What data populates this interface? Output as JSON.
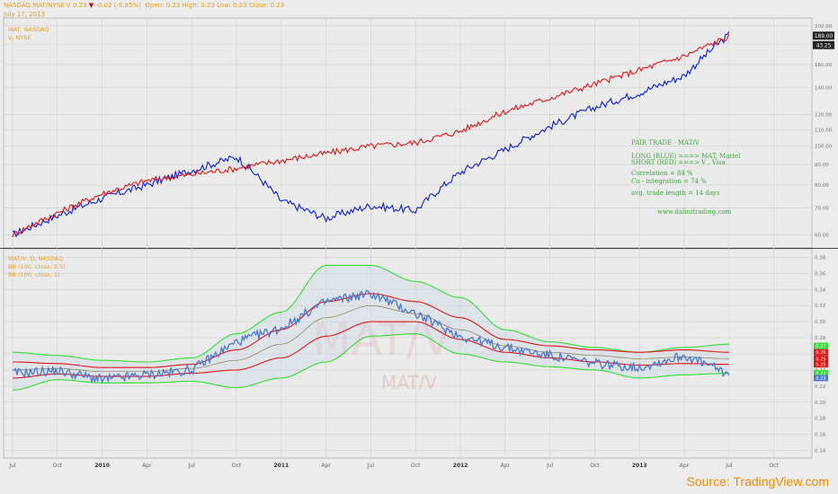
{
  "header": {
    "symbol": "NASDAQ:MAT/NYSE:V",
    "last": "0.23",
    "change_arrow": "▼",
    "change": "-0.02 (-6.85%)",
    "open_label": "Open:",
    "open": "0.23",
    "high_label": "High:",
    "high": "0.23",
    "low_label": "Low:",
    "low": "0.23",
    "close_label": "Close:",
    "close": "0.23",
    "date": "July 17, 2013"
  },
  "source": {
    "prefix": "Source: ",
    "name": "TradingView.com"
  },
  "colors": {
    "blue": "#0a1fd8",
    "red": "#e01515",
    "ratio": "#4a78d0",
    "band_outer": "#33dd33",
    "band_inner": "#e01515",
    "mid": "#8a7a55",
    "text_orange": "#e8a020",
    "annot_green": "#3aaa3a"
  },
  "chart_data": [
    {
      "type": "line",
      "panel": "top",
      "legend": [
        "MAT, NASDAQ",
        "V, NYSE"
      ],
      "annotation": [
        "PAIR TRADE - MAT/V",
        "LONG (BLUE) ===> MAT, Mattel",
        "SHORT (RED) ===> V , Visa",
        "Correlation = 84 %",
        "Co - integration = 74 %",
        "avg. trade length = 14 days",
        "www.dalinitrading.com"
      ],
      "y_ticks": [
        "200.00",
        "180.00",
        "160.00",
        "140.00",
        "120.00",
        "110.00",
        "100.00",
        "90.00",
        "80.00",
        "70.00",
        "60.00"
      ],
      "y_tick_values": [
        200,
        180,
        160,
        140,
        120,
        110,
        100,
        90,
        80,
        70,
        60
      ],
      "ylim": [
        58,
        205
      ],
      "price_badges": [
        {
          "label": "189.00",
          "value": 189
        },
        {
          "label": "43.25",
          "value": 179
        }
      ],
      "x": [
        0,
        3,
        6,
        9,
        12,
        15,
        18,
        21,
        24,
        27,
        30,
        33,
        36,
        39,
        42,
        45,
        48
      ],
      "series": [
        {
          "color": "blue",
          "values": [
            60,
            67,
            74,
            80,
            87,
            94,
            73,
            66,
            71,
            69,
            86,
            98,
            112,
            125,
            136,
            150,
            190
          ]
        },
        {
          "color": "red",
          "values": [
            60,
            68,
            76,
            82,
            85,
            88,
            92,
            96,
            100,
            102,
            109,
            122,
            132,
            143,
            155,
            168,
            188
          ]
        }
      ]
    },
    {
      "type": "line",
      "panel": "bottom",
      "legend": [
        "MAT/V, D, NASDAQ",
        "BB (100, close, 2.5)",
        "BB (100, close, 1)"
      ],
      "watermark": [
        "MAT/V",
        "MAT/V"
      ],
      "y_ticks": [
        "0.38",
        "0.36",
        "0.34",
        "0.32",
        "0.30",
        "0.28",
        "0.26",
        "0.24",
        "0.22",
        "0.20",
        "0.18",
        "0.16",
        "0.14"
      ],
      "y_tick_values": [
        0.38,
        0.36,
        0.34,
        0.32,
        0.3,
        0.28,
        0.26,
        0.24,
        0.22,
        0.2,
        0.18,
        0.16,
        0.14
      ],
      "ylim": [
        0.135,
        0.385
      ],
      "value_badges": [
        {
          "label": "0.27",
          "value": 0.27,
          "color": "band_outer"
        },
        {
          "label": "0.26",
          "value": 0.262,
          "color": "band_inner"
        },
        {
          "label": "0.25",
          "value": 0.254,
          "color": "band_inner"
        },
        {
          "label": "0.25",
          "value": 0.247,
          "color": "band_inner"
        },
        {
          "label": "0.23",
          "value": 0.236,
          "color": "band_outer"
        },
        {
          "label": "0.23",
          "value": 0.23,
          "color": "ratio"
        }
      ],
      "x": [
        0,
        3,
        6,
        9,
        12,
        15,
        18,
        21,
        24,
        27,
        30,
        33,
        36,
        39,
        42,
        45,
        48
      ],
      "ratio": [
        0.236,
        0.239,
        0.228,
        0.234,
        0.24,
        0.275,
        0.292,
        0.325,
        0.335,
        0.31,
        0.282,
        0.268,
        0.258,
        0.248,
        0.243,
        0.258,
        0.235
      ],
      "bands": {
        "upper_outer": [
          0.262,
          0.258,
          0.252,
          0.25,
          0.255,
          0.285,
          0.312,
          0.37,
          0.37,
          0.35,
          0.33,
          0.29,
          0.275,
          0.268,
          0.262,
          0.268,
          0.272
        ],
        "upper_inner": [
          0.25,
          0.248,
          0.243,
          0.243,
          0.247,
          0.265,
          0.29,
          0.325,
          0.335,
          0.325,
          0.305,
          0.278,
          0.27,
          0.265,
          0.262,
          0.265,
          0.262
        ],
        "mid": [
          0.24,
          0.242,
          0.238,
          0.238,
          0.242,
          0.252,
          0.272,
          0.305,
          0.32,
          0.31,
          0.29,
          0.27,
          0.262,
          0.258,
          0.254,
          0.256,
          0.254
        ],
        "lower_inner": [
          0.23,
          0.235,
          0.232,
          0.232,
          0.236,
          0.24,
          0.255,
          0.282,
          0.3,
          0.3,
          0.278,
          0.262,
          0.255,
          0.25,
          0.246,
          0.248,
          0.247
        ],
        "lower_outer": [
          0.215,
          0.228,
          0.224,
          0.224,
          0.226,
          0.218,
          0.23,
          0.25,
          0.282,
          0.285,
          0.26,
          0.25,
          0.244,
          0.24,
          0.23,
          0.234,
          0.236
        ]
      }
    }
  ],
  "x_axis": {
    "labels": [
      "Jul",
      "Oct",
      "2010",
      "Apr",
      "Jul",
      "Oct",
      "2011",
      "Apr",
      "Jul",
      "Oct",
      "2012",
      "Apr",
      "Jul",
      "Oct",
      "2013",
      "Apr",
      "Jul",
      "Oct"
    ],
    "months": [
      0,
      3,
      6,
      9,
      12,
      15,
      18,
      21,
      24,
      27,
      30,
      33,
      36,
      39,
      42,
      45,
      48,
      51
    ]
  }
}
